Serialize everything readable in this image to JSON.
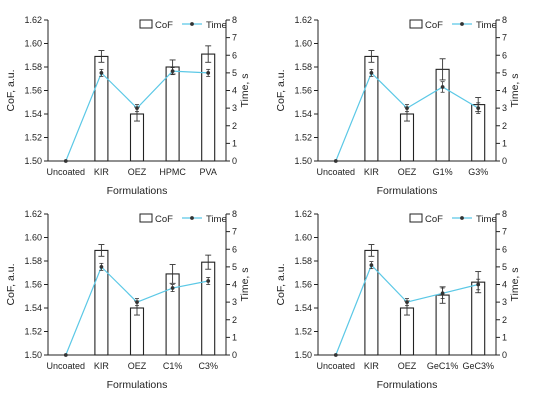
{
  "chart_data": [
    {
      "type": "bar",
      "categories": [
        "Uncoated",
        "KIR",
        "OEZ",
        "HPMC",
        "PVA"
      ],
      "series": [
        {
          "name": "CoF",
          "type": "bar",
          "axis": "left",
          "values": [
            1.5,
            1.589,
            1.54,
            1.58,
            1.591
          ],
          "errors": [
            0,
            0.005,
            0.006,
            0.006,
            0.007
          ]
        },
        {
          "name": "Time",
          "type": "line",
          "axis": "right",
          "values": [
            0,
            5.0,
            3.0,
            5.1,
            5.0
          ],
          "errors": [
            0,
            0.2,
            0.2,
            0.2,
            0.2
          ]
        }
      ],
      "xlabel": "Formulations",
      "ylabel": "CoF, a.u.",
      "ylabel_right": "Time, s",
      "ylim": [
        1.5,
        1.62
      ],
      "ylim_right": [
        0,
        8
      ],
      "yticks": [
        "1.50",
        "1.52",
        "1.54",
        "1.56",
        "1.58",
        "1.60",
        "1.62"
      ],
      "yticks_right": [
        "0",
        "1",
        "2",
        "3",
        "4",
        "5",
        "6",
        "7",
        "8"
      ],
      "legend": [
        "CoF",
        "Time"
      ],
      "legend_position": "top-right"
    },
    {
      "type": "bar",
      "categories": [
        "Uncoated",
        "KIR",
        "OEZ",
        "G1%",
        "G3%"
      ],
      "series": [
        {
          "name": "CoF",
          "type": "bar",
          "axis": "left",
          "values": [
            1.5,
            1.589,
            1.54,
            1.578,
            1.548
          ],
          "errors": [
            0,
            0.005,
            0.006,
            0.009,
            0.006
          ]
        },
        {
          "name": "Time",
          "type": "line",
          "axis": "right",
          "values": [
            0,
            5.0,
            3.0,
            4.2,
            3.0
          ],
          "errors": [
            0,
            0.2,
            0.2,
            0.3,
            0.3
          ]
        }
      ],
      "xlabel": "Formulations",
      "ylabel": "CoF, a.u.",
      "ylabel_right": "Time, s",
      "ylim": [
        1.5,
        1.62
      ],
      "ylim_right": [
        0,
        8
      ],
      "yticks": [
        "1.50",
        "1.52",
        "1.54",
        "1.56",
        "1.58",
        "1.60",
        "1.62"
      ],
      "yticks_right": [
        "0",
        "1",
        "2",
        "3",
        "4",
        "5",
        "6",
        "7",
        "8"
      ],
      "legend": [
        "CoF",
        "Time"
      ],
      "legend_position": "top-right"
    },
    {
      "type": "bar",
      "categories": [
        "Uncoated",
        "KIR",
        "OEZ",
        "C1%",
        "C3%"
      ],
      "series": [
        {
          "name": "CoF",
          "type": "bar",
          "axis": "left",
          "values": [
            1.5,
            1.589,
            1.54,
            1.569,
            1.579
          ],
          "errors": [
            0,
            0.005,
            0.006,
            0.008,
            0.006
          ]
        },
        {
          "name": "Time",
          "type": "line",
          "axis": "right",
          "values": [
            0,
            5.0,
            3.0,
            3.8,
            4.2
          ],
          "errors": [
            0,
            0.2,
            0.2,
            0.2,
            0.2
          ]
        }
      ],
      "xlabel": "Formulations",
      "ylabel": "CoF, a.u.",
      "ylabel_right": "Time, s",
      "ylim": [
        1.5,
        1.62
      ],
      "ylim_right": [
        0,
        8
      ],
      "yticks": [
        "1.50",
        "1.52",
        "1.54",
        "1.56",
        "1.58",
        "1.60",
        "1.62"
      ],
      "yticks_right": [
        "0",
        "1",
        "2",
        "3",
        "4",
        "5",
        "6",
        "7",
        "8"
      ],
      "legend": [
        "CoF",
        "Time"
      ],
      "legend_position": "top-right"
    },
    {
      "type": "bar",
      "categories": [
        "Uncoated",
        "KIR",
        "OEZ",
        "GeC1%",
        "GeC3%"
      ],
      "series": [
        {
          "name": "CoF",
          "type": "bar",
          "axis": "left",
          "values": [
            1.5,
            1.589,
            1.54,
            1.551,
            1.562
          ],
          "errors": [
            0,
            0.005,
            0.006,
            0.007,
            0.009
          ]
        },
        {
          "name": "Time",
          "type": "line",
          "axis": "right",
          "values": [
            0,
            5.1,
            3.0,
            3.5,
            4.0
          ],
          "errors": [
            0,
            0.2,
            0.2,
            0.3,
            0.3
          ]
        }
      ],
      "xlabel": "Formulations",
      "ylabel": "CoF, a.u.",
      "ylabel_right": "Time, s",
      "ylim": [
        1.5,
        1.62
      ],
      "ylim_right": [
        0,
        8
      ],
      "yticks": [
        "1.50",
        "1.52",
        "1.54",
        "1.56",
        "1.58",
        "1.60",
        "1.62"
      ],
      "yticks_right": [
        "0",
        "1",
        "2",
        "3",
        "4",
        "5",
        "6",
        "7",
        "8"
      ],
      "legend": [
        "CoF",
        "Time"
      ],
      "legend_position": "top-right"
    }
  ],
  "colors": {
    "axis": "#222222",
    "bar_fill": "#ffffff",
    "bar_stroke": "#222222",
    "time_line": "#5bc8e6",
    "time_marker": "#333333",
    "error_bar": "#333333"
  }
}
